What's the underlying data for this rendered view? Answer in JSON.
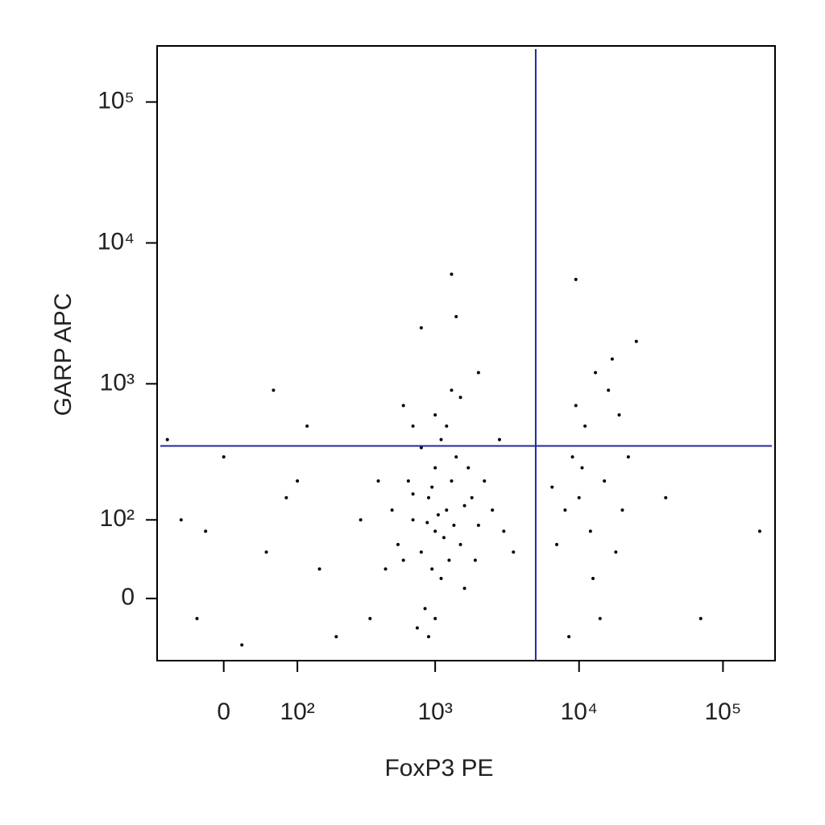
{
  "chart_data": {
    "type": "scatter",
    "x_label": "FoxP3 PE",
    "y_label": "GARP APC",
    "xscale": "biexponential",
    "yscale": "biexponential",
    "xlim": [
      -87,
      230000
    ],
    "ylim": [
      -72,
      250000
    ],
    "xticks": [
      0,
      {
        "value": 100,
        "label": "10²"
      },
      {
        "value": 1000,
        "label": "10³"
      },
      {
        "value": 10000,
        "label": "10⁴"
      },
      {
        "value": 100000,
        "label": "10⁵"
      }
    ],
    "yticks": [
      0,
      {
        "value": 100,
        "label": "10²"
      },
      {
        "value": 1000,
        "label": "10³"
      },
      {
        "value": 10000,
        "label": "10⁴"
      },
      {
        "value": 100000,
        "label": "10⁵"
      }
    ],
    "color": "#000000",
    "gates": {
      "x": 5000,
      "y": 360,
      "color": "#1f2a9c"
    },
    "x": [
      1000,
      800,
      1200,
      900,
      1500,
      700,
      1100,
      1300,
      600,
      2000,
      850,
      1000,
      1800,
      500,
      1400,
      750,
      950,
      1250,
      2500,
      650,
      1100,
      1600,
      900,
      1700,
      550,
      3000,
      1200,
      800,
      2200,
      450,
      1000,
      1350,
      700,
      1900,
      1050,
      1150,
      880,
      1000,
      1500,
      700,
      2000,
      1300,
      600,
      3500,
      400,
      350,
      300,
      2800,
      1600,
      950,
      10000,
      12000,
      15000,
      8000,
      18000,
      9000,
      14000,
      11000,
      20000,
      7000,
      16000,
      13000,
      9500,
      22000,
      12500,
      17000,
      8500,
      10500,
      19000,
      6500,
      -50,
      0,
      -30,
      50,
      100,
      20,
      -70,
      150,
      80,
      200,
      -20,
      120,
      1300,
      9500,
      1400,
      180000,
      70000,
      40000,
      60,
      25000,
      800
    ],
    "y": [
      80,
      50,
      120,
      150,
      60,
      100,
      20,
      200,
      40,
      90,
      -10,
      250,
      150,
      120,
      300,
      -30,
      180,
      40,
      120,
      200,
      400,
      10,
      -40,
      250,
      60,
      80,
      500,
      350,
      200,
      30,
      -20,
      90,
      160,
      40,
      110,
      70,
      95,
      600,
      800,
      500,
      1200,
      900,
      700,
      50,
      200,
      -20,
      100,
      400,
      130,
      30,
      150,
      80,
      200,
      120,
      50,
      300,
      -20,
      500,
      120,
      60,
      900,
      1200,
      700,
      300,
      20,
      1500,
      -40,
      250,
      600,
      180,
      100,
      300,
      -20,
      50,
      200,
      -50,
      400,
      30,
      150,
      -40,
      80,
      500,
      6000,
      5500,
      3000,
      80,
      -20,
      150,
      900,
      2000,
      2500
    ]
  }
}
